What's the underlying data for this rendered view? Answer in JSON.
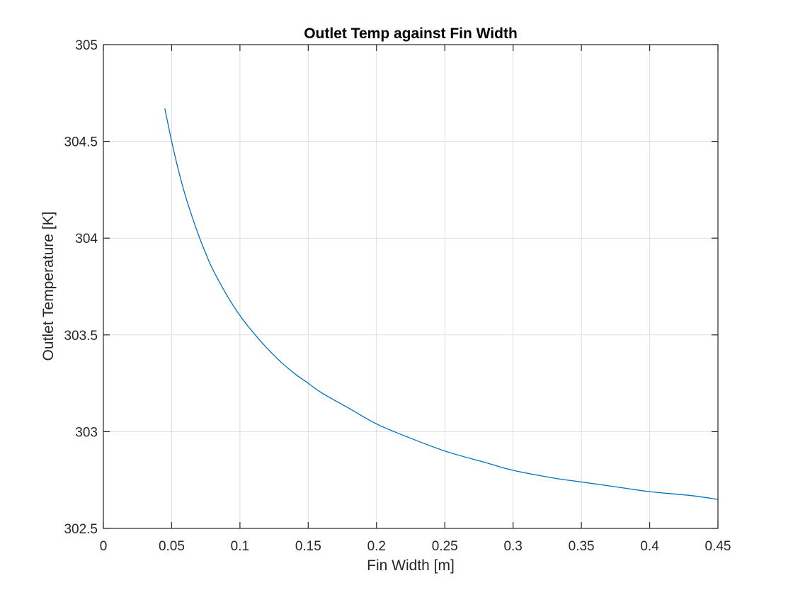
{
  "chart_data": {
    "type": "line",
    "title": "Outlet Temp against Fin Width",
    "xlabel": "Fin Width [m]",
    "ylabel": "Outlet Temperature [K]",
    "xlim": [
      0,
      0.45
    ],
    "ylim": [
      302.5,
      305
    ],
    "xticks": [
      0,
      0.05,
      0.1,
      0.15,
      0.2,
      0.25,
      0.3,
      0.35,
      0.4,
      0.45
    ],
    "xtick_labels": [
      "0",
      "0.05",
      "0.1",
      "0.15",
      "0.2",
      "0.25",
      "0.3",
      "0.35",
      "0.4",
      "0.45"
    ],
    "yticks": [
      302.5,
      303,
      303.5,
      304,
      304.5,
      305
    ],
    "ytick_labels": [
      "302.5",
      "303",
      "303.5",
      "304",
      "304.5",
      "305"
    ],
    "grid": true,
    "series": [
      {
        "color": "#0072BD",
        "x": [
          0.045,
          0.05,
          0.055,
          0.06,
          0.065,
          0.07,
          0.075,
          0.08,
          0.09,
          0.1,
          0.11,
          0.12,
          0.13,
          0.14,
          0.15,
          0.16,
          0.18,
          0.2,
          0.22,
          0.25,
          0.28,
          0.3,
          0.33,
          0.35,
          0.38,
          0.4,
          0.43,
          0.45
        ],
        "y": [
          304.67,
          304.5,
          304.35,
          304.22,
          304.11,
          304.01,
          303.92,
          303.84,
          303.71,
          303.6,
          303.51,
          303.43,
          303.36,
          303.3,
          303.25,
          303.2,
          303.12,
          303.04,
          302.98,
          302.9,
          302.84,
          302.8,
          302.76,
          302.74,
          302.71,
          302.69,
          302.67,
          302.65
        ]
      }
    ]
  }
}
